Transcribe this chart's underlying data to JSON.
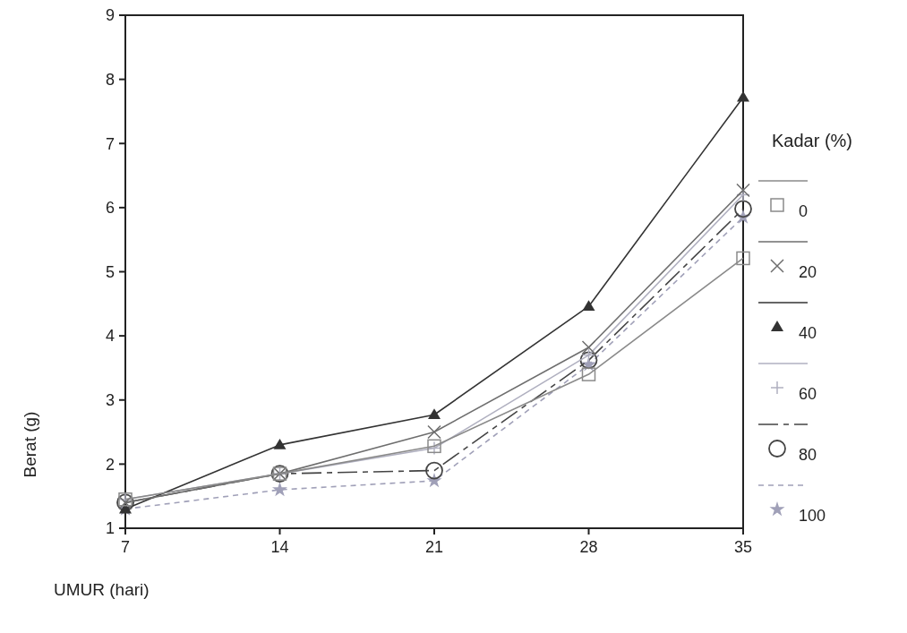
{
  "chart_data": {
    "type": "line",
    "xlabel": "UMUR (hari)",
    "ylabel": "Berat (g)",
    "legend_title": "Kadar (%)",
    "legend": "right",
    "grid": false,
    "x": [
      7,
      14,
      21,
      28,
      35
    ],
    "xlim": [
      7,
      35
    ],
    "xticks": [
      7,
      14,
      21,
      28,
      35
    ],
    "ylim": [
      1,
      9
    ],
    "yticks": [
      1,
      2,
      3,
      4,
      5,
      6,
      7,
      8,
      9
    ],
    "series": [
      {
        "name": "0",
        "color": "#8a8a8a",
        "marker": "square",
        "line_style": "solid",
        "values": [
          1.45,
          1.85,
          2.28,
          3.4,
          5.21
        ]
      },
      {
        "name": "20",
        "color": "#6e6e6e",
        "marker": "cross",
        "line_style": "solid",
        "values": [
          1.4,
          1.85,
          2.5,
          3.82,
          6.27
        ]
      },
      {
        "name": "40",
        "color": "#333333",
        "marker": "triangle",
        "line_style": "solid",
        "values": [
          1.3,
          2.3,
          2.77,
          4.46,
          7.72
        ]
      },
      {
        "name": "60",
        "color": "#b0b0c0",
        "marker": "plus",
        "line_style": "solid",
        "values": [
          1.45,
          1.85,
          2.25,
          3.7,
          6.2
        ]
      },
      {
        "name": "80",
        "color": "#444444",
        "marker": "circle",
        "line_style": "dashdot",
        "values": [
          1.4,
          1.85,
          1.9,
          3.62,
          5.98
        ]
      },
      {
        "name": "100",
        "color": "#a0a0b8",
        "marker": "star",
        "line_style": "dashed",
        "values": [
          1.3,
          1.6,
          1.74,
          3.55,
          5.85
        ]
      }
    ]
  }
}
